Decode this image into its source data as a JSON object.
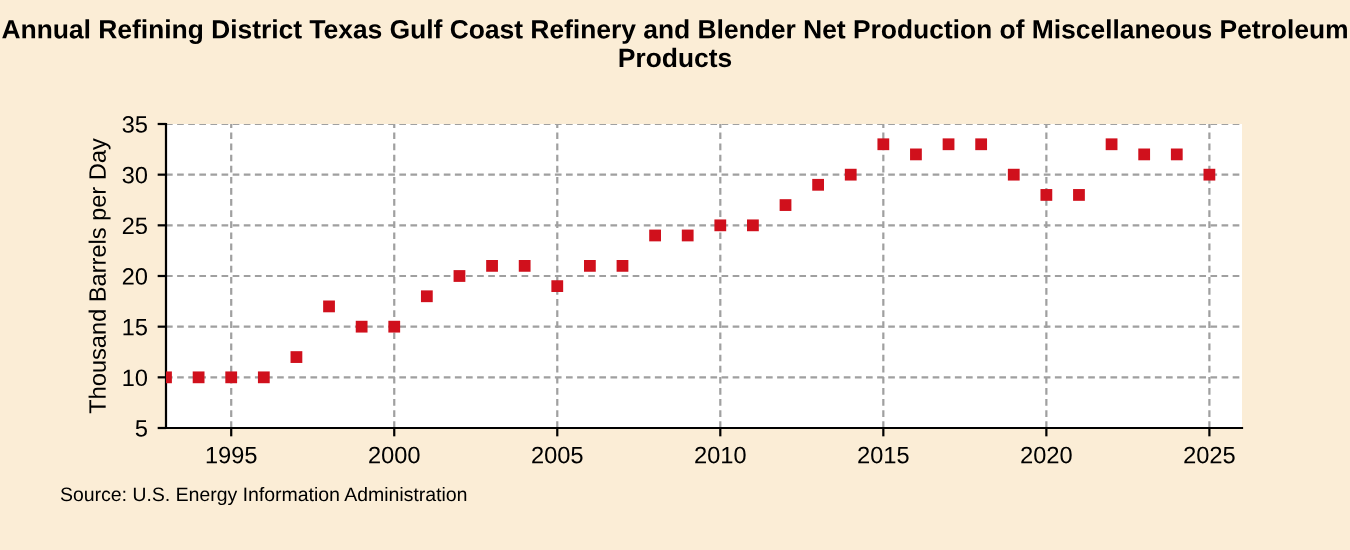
{
  "chart_data": {
    "type": "scatter",
    "title": "Annual Refining District Texas Gulf Coast Refinery and Blender Net Production of Miscellaneous Petroleum Products",
    "ylabel": "Thousand Barrels per Day",
    "annotations": [
      "Source: U.S. Energy Information Administration"
    ],
    "x": [
      1993,
      1994,
      1995,
      1996,
      1997,
      1998,
      1999,
      2000,
      2001,
      2002,
      2003,
      2004,
      2005,
      2006,
      2007,
      2008,
      2009,
      2010,
      2011,
      2012,
      2013,
      2014,
      2015,
      2016,
      2017,
      2018,
      2019,
      2020,
      2021,
      2022,
      2023,
      2024,
      2025
    ],
    "series": [
      {
        "color": "#d0101c",
        "values": [
          10,
          10,
          10,
          10,
          12,
          17,
          15,
          15,
          18,
          20,
          21,
          21,
          19,
          21,
          21,
          24,
          24,
          25,
          25,
          27,
          29,
          30,
          33,
          32,
          33,
          33,
          30,
          28,
          28,
          33,
          32,
          32,
          30
        ]
      }
    ],
    "xlim": [
      1993,
      2026
    ],
    "xticks": [
      1995,
      2000,
      2005,
      2010,
      2015,
      2020,
      2025
    ],
    "ylim": [
      5,
      35
    ],
    "yticks": [
      5,
      10,
      15,
      20,
      25,
      30,
      35
    ],
    "grid": true,
    "marker": "square",
    "legend": false
  }
}
